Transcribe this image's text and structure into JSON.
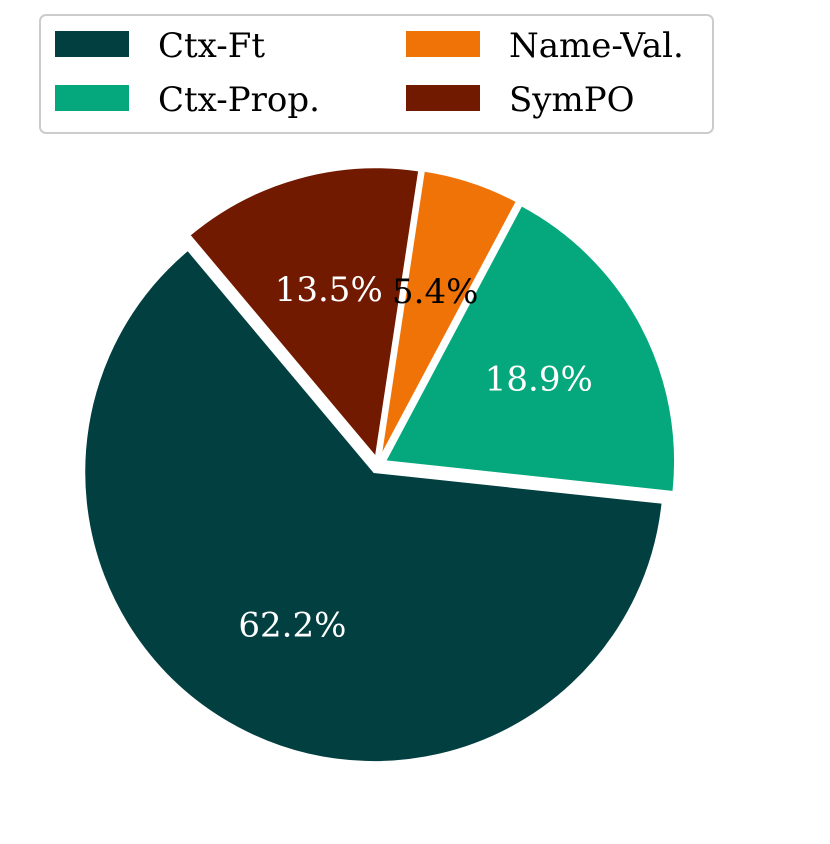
{
  "chart_data": {
    "type": "pie",
    "title": "",
    "categories": [
      "Ctx-Ft",
      "Ctx-Prop.",
      "Name-Val.",
      "SymPO"
    ],
    "values": [
      62.2,
      18.9,
      5.4,
      13.5
    ],
    "labels": [
      "62.2%",
      "18.9%",
      "5.4%",
      "13.5%"
    ],
    "colors": [
      "#023f40",
      "#05a87c",
      "#f07308",
      "#711a00"
    ],
    "label_colors": [
      "#ffffff",
      "#ffffff",
      "#000000",
      "#ffffff"
    ],
    "legend": {
      "placement": "top",
      "columns": 2,
      "entries": [
        {
          "label": "Ctx-Ft",
          "color": "#023f40"
        },
        {
          "label": "Name-Val.",
          "color": "#f07308"
        },
        {
          "label": "Ctx-Prop.",
          "color": "#05a87c"
        },
        {
          "label": "SymPO",
          "color": "#711a00"
        }
      ]
    },
    "exploded": true,
    "start_angle_deg": 130,
    "direction": "counterclockwise"
  }
}
